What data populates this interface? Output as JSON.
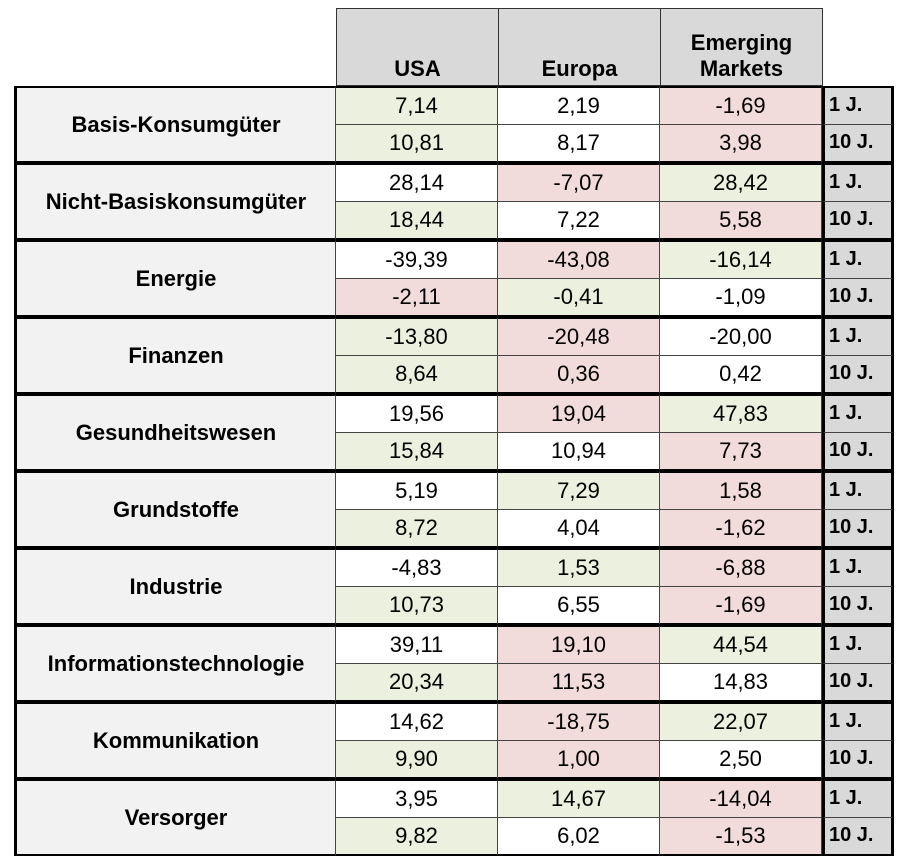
{
  "chart_data": {
    "type": "table",
    "columns": [
      "USA",
      "Europa",
      "Emerging Markets"
    ],
    "periods": [
      "1 J.",
      "10 J."
    ],
    "colors": {
      "positive_bg": "#ebf1de",
      "negative_bg": "#f2dcdb",
      "neutral_bg": "#ffffff",
      "header_bg": "#d9d9d9",
      "sector_bg": "#f2f2f2"
    },
    "sectors": [
      {
        "name": "Basis-Konsumgüter",
        "rows": [
          {
            "values": [
              "7,14",
              "2,19",
              "-1,69"
            ],
            "shading": [
              "positive",
              "neutral",
              "negative"
            ]
          },
          {
            "values": [
              "10,81",
              "8,17",
              "3,98"
            ],
            "shading": [
              "positive",
              "neutral",
              "negative"
            ]
          }
        ]
      },
      {
        "name": "Nicht-Basiskonsumgüter",
        "rows": [
          {
            "values": [
              "28,14",
              "-7,07",
              "28,42"
            ],
            "shading": [
              "neutral",
              "negative",
              "positive"
            ]
          },
          {
            "values": [
              "18,44",
              "7,22",
              "5,58"
            ],
            "shading": [
              "positive",
              "neutral",
              "negative"
            ]
          }
        ]
      },
      {
        "name": "Energie",
        "rows": [
          {
            "values": [
              "-39,39",
              "-43,08",
              "-16,14"
            ],
            "shading": [
              "neutral",
              "negative",
              "positive"
            ]
          },
          {
            "values": [
              "-2,11",
              "-0,41",
              "-1,09"
            ],
            "shading": [
              "negative",
              "positive",
              "neutral"
            ]
          }
        ]
      },
      {
        "name": "Finanzen",
        "rows": [
          {
            "values": [
              "-13,80",
              "-20,48",
              "-20,00"
            ],
            "shading": [
              "positive",
              "negative",
              "neutral"
            ]
          },
          {
            "values": [
              "8,64",
              "0,36",
              "0,42"
            ],
            "shading": [
              "positive",
              "negative",
              "neutral"
            ]
          }
        ]
      },
      {
        "name": "Gesundheitswesen",
        "rows": [
          {
            "values": [
              "19,56",
              "19,04",
              "47,83"
            ],
            "shading": [
              "neutral",
              "negative",
              "positive"
            ]
          },
          {
            "values": [
              "15,84",
              "10,94",
              "7,73"
            ],
            "shading": [
              "positive",
              "neutral",
              "negative"
            ]
          }
        ]
      },
      {
        "name": "Grundstoffe",
        "rows": [
          {
            "values": [
              "5,19",
              "7,29",
              "1,58"
            ],
            "shading": [
              "neutral",
              "positive",
              "negative"
            ]
          },
          {
            "values": [
              "8,72",
              "4,04",
              "-1,62"
            ],
            "shading": [
              "positive",
              "neutral",
              "negative"
            ]
          }
        ]
      },
      {
        "name": "Industrie",
        "rows": [
          {
            "values": [
              "-4,83",
              "1,53",
              "-6,88"
            ],
            "shading": [
              "neutral",
              "positive",
              "negative"
            ]
          },
          {
            "values": [
              "10,73",
              "6,55",
              "-1,69"
            ],
            "shading": [
              "positive",
              "neutral",
              "negative"
            ]
          }
        ]
      },
      {
        "name": "Informationstechnologie",
        "rows": [
          {
            "values": [
              "39,11",
              "19,10",
              "44,54"
            ],
            "shading": [
              "neutral",
              "negative",
              "positive"
            ]
          },
          {
            "values": [
              "20,34",
              "11,53",
              "14,83"
            ],
            "shading": [
              "positive",
              "negative",
              "neutral"
            ]
          }
        ]
      },
      {
        "name": "Kommunikation",
        "rows": [
          {
            "values": [
              "14,62",
              "-18,75",
              "22,07"
            ],
            "shading": [
              "neutral",
              "negative",
              "positive"
            ]
          },
          {
            "values": [
              "9,90",
              "1,00",
              "2,50"
            ],
            "shading": [
              "positive",
              "negative",
              "neutral"
            ]
          }
        ]
      },
      {
        "name": "Versorger",
        "rows": [
          {
            "values": [
              "3,95",
              "14,67",
              "-14,04"
            ],
            "shading": [
              "neutral",
              "positive",
              "negative"
            ]
          },
          {
            "values": [
              "9,82",
              "6,02",
              "-1,53"
            ],
            "shading": [
              "positive",
              "neutral",
              "negative"
            ]
          }
        ]
      }
    ]
  }
}
